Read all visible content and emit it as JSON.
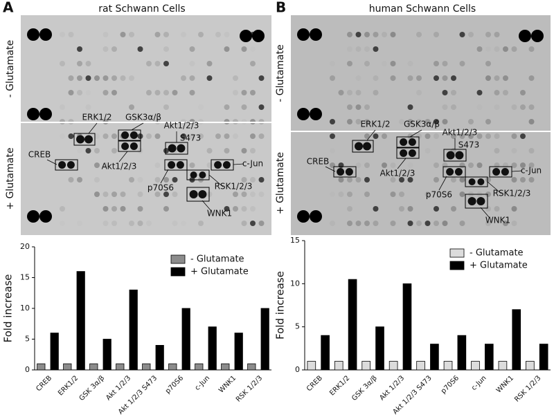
{
  "panels": [
    {
      "letter": "A",
      "title": "rat Schwann Cells",
      "condition_labels": [
        "- Glutamate",
        "+ Glutamate"
      ],
      "spot_labels": [
        "ERK1/2",
        "GSK3α/β",
        "Akt1/2/3",
        "S473",
        "CREB",
        "c-Jun",
        "Akt1/2/3",
        "p70S6",
        "RSK1/2/3",
        "WNK1"
      ]
    },
    {
      "letter": "B",
      "title": "human Schwann Cells",
      "condition_labels": [
        "- Glutamate",
        "+ Glutamate"
      ],
      "spot_labels": [
        "ERK1/2",
        "GSK3α/β",
        "Akt1/2/3",
        "S473",
        "CREB",
        "c-Jun",
        "Akt1/2/3",
        "p70S6",
        "RSK1/2/3",
        "WNK1"
      ]
    }
  ],
  "chart_data": [
    {
      "type": "bar",
      "y_label": "Fold increase",
      "categories": [
        "CREB",
        "ERK1/2",
        "GSK 3α/β",
        "Akt 1/2/3",
        "Akt 1/2/3 S473",
        "p70S6",
        "c-Jun",
        "WNK1",
        "RSK 1/2/3"
      ],
      "series": [
        {
          "name": "- Glutamate",
          "color": "#8c8c8c",
          "values": [
            1,
            1,
            1,
            1,
            1,
            1,
            1,
            1,
            1
          ]
        },
        {
          "name": "+ Glutamate",
          "color": "#000000",
          "values": [
            6,
            16,
            5,
            13,
            4,
            10,
            7,
            6,
            10
          ]
        }
      ],
      "ylim": [
        0,
        20
      ],
      "yticks": [
        0,
        5,
        10,
        15,
        20
      ],
      "legend": "upper right"
    },
    {
      "type": "bar",
      "y_label": "Fold increase",
      "categories": [
        "CREB",
        "ERK1/2",
        "GSK 3α/β",
        "Akt 1/2/3",
        "Akt 1/2/3 S473",
        "p70S6",
        "c-Jun",
        "WNK1",
        "RSK 1/2/3"
      ],
      "series": [
        {
          "name": "- Glutamate",
          "color": "#dcdcdc",
          "values": [
            1,
            1,
            1,
            1,
            1,
            1,
            1,
            1,
            1
          ]
        },
        {
          "name": "+ Glutamate",
          "color": "#000000",
          "values": [
            4,
            10.5,
            5,
            10,
            3,
            4,
            3,
            7,
            3
          ]
        }
      ],
      "ylim": [
        0,
        15
      ],
      "yticks": [
        0,
        5,
        10,
        15
      ],
      "legend": "upper right"
    }
  ]
}
